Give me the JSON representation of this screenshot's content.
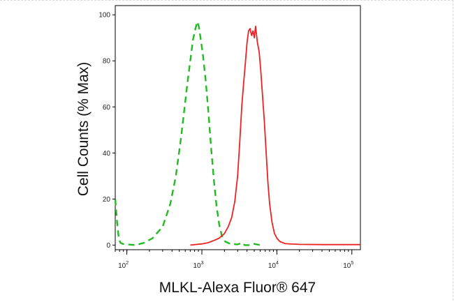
{
  "chart_data": {
    "type": "line",
    "xlabel": "MLKL-Alexa Fluor® 647",
    "ylabel": "Cell Counts (% Max)",
    "x_scale": "log",
    "xlim": [
      70,
      130000
    ],
    "ylim": [
      -2,
      104
    ],
    "x_ticks": [
      {
        "value": 100,
        "base": "10",
        "exp": "2"
      },
      {
        "value": 1000,
        "base": "10",
        "exp": "3"
      },
      {
        "value": 10000,
        "base": "10",
        "exp": "4"
      },
      {
        "value": 100000,
        "base": "10",
        "exp": "5"
      }
    ],
    "y_ticks": [
      0,
      20,
      40,
      60,
      80,
      100
    ],
    "grid": false,
    "series": [
      {
        "color": "#22bb22",
        "dash": "dashed",
        "points": [
          [
            70,
            20
          ],
          [
            74,
            10
          ],
          [
            78,
            3
          ],
          [
            82,
            1
          ],
          [
            88,
            0.5
          ],
          [
            100,
            0.3
          ],
          [
            130,
            0
          ],
          [
            170,
            1
          ],
          [
            220,
            3
          ],
          [
            300,
            8
          ],
          [
            380,
            18
          ],
          [
            450,
            30
          ],
          [
            520,
            45
          ],
          [
            580,
            58
          ],
          [
            640,
            70
          ],
          [
            700,
            80
          ],
          [
            760,
            89
          ],
          [
            820,
            94
          ],
          [
            870,
            97
          ],
          [
            910,
            95
          ],
          [
            960,
            90
          ],
          [
            1030,
            83
          ],
          [
            1120,
            72
          ],
          [
            1220,
            58
          ],
          [
            1330,
            42
          ],
          [
            1450,
            28
          ],
          [
            1570,
            17
          ],
          [
            1700,
            9
          ],
          [
            1850,
            4
          ],
          [
            2050,
            1.5
          ],
          [
            2400,
            0.5
          ],
          [
            3000,
            0.3
          ],
          [
            3500,
            1
          ],
          [
            3700,
            0
          ],
          [
            4200,
            0
          ],
          [
            5000,
            0.5
          ],
          [
            6000,
            0
          ]
        ]
      },
      {
        "color": "#ee2222",
        "dash": "solid",
        "points": [
          [
            700,
            0
          ],
          [
            1000,
            0.5
          ],
          [
            1200,
            1
          ],
          [
            1450,
            2
          ],
          [
            1700,
            3
          ],
          [
            2000,
            5
          ],
          [
            2250,
            8
          ],
          [
            2500,
            12
          ],
          [
            2750,
            19
          ],
          [
            3000,
            30
          ],
          [
            3200,
            45
          ],
          [
            3400,
            60
          ],
          [
            3600,
            70
          ],
          [
            3800,
            79
          ],
          [
            4000,
            88
          ],
          [
            4200,
            93
          ],
          [
            4400,
            94
          ],
          [
            4600,
            91
          ],
          [
            4800,
            93
          ],
          [
            5000,
            90
          ],
          [
            5200,
            95
          ],
          [
            5500,
            88
          ],
          [
            5800,
            84
          ],
          [
            6100,
            76
          ],
          [
            6400,
            66
          ],
          [
            6800,
            54
          ],
          [
            7200,
            40
          ],
          [
            7600,
            27
          ],
          [
            8000,
            18
          ],
          [
            8600,
            10
          ],
          [
            9300,
            5
          ],
          [
            10000,
            3
          ],
          [
            11000,
            1.5
          ],
          [
            13000,
            0.6
          ],
          [
            20000,
            0.3
          ],
          [
            40000,
            0.2
          ],
          [
            80000,
            0.2
          ],
          [
            130000,
            0.2
          ]
        ]
      }
    ]
  }
}
